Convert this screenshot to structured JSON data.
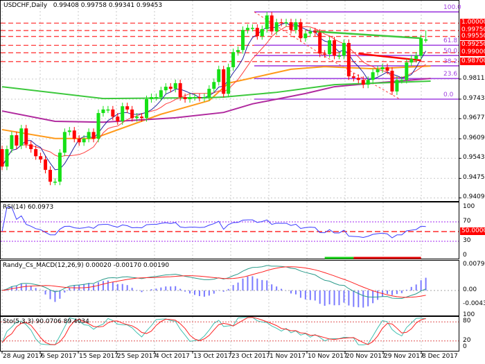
{
  "header": {
    "symbol": "USDCHF,Daily",
    "ohlc": "0.99408 0.99758 0.99341 0.99453"
  },
  "colors": {
    "bull": "#16e016",
    "bear": "#ff0000",
    "ma_fast": "#2323a0",
    "ma_10": "#ff4040",
    "ma_50": "#ff9a1a",
    "ma_100": "#b0299e",
    "ma_200": "#3cc83c",
    "fib": "#a040e0",
    "level": "#ff3c3c"
  },
  "chart_data": [
    {
      "type": "candlestick",
      "title": "USDCHF,Daily",
      "xlabel": "",
      "ylabel": "",
      "ylim": [
        0.9395,
        1.0066
      ],
      "grid": true,
      "price_ticks": [
        "0.98110",
        "0.97430",
        "0.96770",
        "0.96090",
        "0.95430",
        "0.94750",
        "0.94090"
      ],
      "date_ticks": [
        "28 Aug 2017",
        "6 Sep 2017",
        "15 Sep 2017",
        "25 Sep 2017",
        "4 Oct 2017",
        "13 Oct 2017",
        "23 Oct 2017",
        "1 Nov 2017",
        "10 Nov 2017",
        "20 Nov 2017",
        "29 Nov 2017",
        "8 Dec 2017"
      ],
      "first_open": 0.9574,
      "closes": [
        0.9515,
        0.9574,
        0.9621,
        0.9586,
        0.9644,
        0.959,
        0.9574,
        0.955,
        0.9539,
        0.9504,
        0.9464,
        0.9464,
        0.9562,
        0.9632,
        0.9637,
        0.9609,
        0.9597,
        0.9609,
        0.9632,
        0.9609,
        0.9696,
        0.9708,
        0.9708,
        0.9684,
        0.9668,
        0.9719,
        0.9708,
        0.9679,
        0.9684,
        0.9679,
        0.9743,
        0.975,
        0.975,
        0.9773,
        0.9785,
        0.9778,
        0.9797,
        0.975,
        0.9743,
        0.975,
        0.975,
        0.9747,
        0.975,
        0.9778,
        0.9801,
        0.9844,
        0.9761,
        0.9851,
        0.9902,
        0.9909,
        0.9977,
        0.9984,
        0.9984,
        0.9956,
        0.998,
        1.0026,
        0.9972,
        1.0003,
        1.0001,
        1.0003,
        0.9977,
        1.0003,
        0.9949,
        0.9965,
        0.9972,
        0.9968,
        0.9897,
        0.9895,
        0.9942,
        0.989,
        0.989,
        0.9933,
        0.982,
        0.9815,
        0.9808,
        0.9792,
        0.9808,
        0.9834,
        0.9844,
        0.9851,
        0.9839,
        0.9769,
        0.9808,
        0.9808,
        0.9867,
        0.9879,
        0.989,
        0.9949,
        0.9945
      ],
      "last_bar": {
        "open": 0.99408,
        "high": 0.99758,
        "low": 0.99341,
        "close": 0.99453
      },
      "moving_averages": [
        {
          "key": "ma_50",
          "points": [
            [
              0,
              0.964
            ],
            [
              11,
              0.961
            ],
            [
              19,
              0.961
            ],
            [
              33,
              0.9692
            ],
            [
              43,
              0.9738
            ],
            [
              47,
              0.9797
            ],
            [
              60,
              0.9844
            ],
            [
              67,
              0.9853
            ],
            [
              77,
              0.9846
            ],
            [
              89,
              0.9855
            ]
          ]
        },
        {
          "key": "ma_100",
          "points": [
            [
              0,
              0.9703
            ],
            [
              11,
              0.9668
            ],
            [
              21,
              0.9665
            ],
            [
              36,
              0.968
            ],
            [
              46,
              0.9698
            ],
            [
              52,
              0.9727
            ],
            [
              63,
              0.9762
            ],
            [
              69,
              0.9785
            ],
            [
              77,
              0.9797
            ],
            [
              89,
              0.9813
            ]
          ]
        },
        {
          "key": "ma_200",
          "points": [
            [
              0,
              0.9785
            ],
            [
              21,
              0.9745
            ],
            [
              43,
              0.9748
            ],
            [
              46,
              0.975
            ],
            [
              57,
              0.9766
            ],
            [
              69,
              0.9792
            ],
            [
              77,
              0.9797
            ],
            [
              89,
              0.9804
            ]
          ]
        }
      ],
      "levels": [
        {
          "label": "1.00000",
          "price": 1.0
        },
        {
          "label": "0.99750",
          "price": 0.9975
        },
        {
          "label": "0.99550",
          "price": 0.9955
        },
        {
          "label": "0.99250",
          "price": 0.9925
        },
        {
          "label": "0.99000",
          "price": 0.99
        },
        {
          "label": "0.98700",
          "price": 0.987
        }
      ],
      "fibonacci": {
        "high": 1.0038,
        "low": 0.9743,
        "levels": [
          {
            "label": "100.0",
            "ratio": 1.0
          },
          {
            "label": "61.8",
            "ratio": 0.618
          },
          {
            "label": "50.0",
            "ratio": 0.5
          },
          {
            "label": "38.2",
            "ratio": 0.382
          },
          {
            "label": "23.6",
            "ratio": 0.236
          },
          {
            "label": "0.0",
            "ratio": 0.0
          }
        ]
      },
      "trendlines": [
        {
          "key": "ma_200",
          "from": [
            65,
            0.9972
          ],
          "to": [
            87,
            0.9949
          ]
        },
        {
          "key": "bear",
          "from": [
            74,
            0.9897
          ],
          "to": [
            87,
            0.9874
          ]
        }
      ]
    },
    {
      "type": "line",
      "title": "RSI(14) 60.0973",
      "ylim": [
        0,
        100
      ],
      "ticks": [
        "100",
        "70",
        "30",
        "0"
      ],
      "level_label": "50.0000",
      "levels": [
        70,
        50,
        30
      ]
    },
    {
      "type": "bar+line",
      "title": "Randy_Cs_MACD(12,26,9) 0.00020 -0.00170 0.00190",
      "ticks": [
        "0.00797",
        "0.00",
        "-0.00432"
      ],
      "ylim": [
        -0.0047,
        0.0086
      ]
    },
    {
      "type": "line",
      "title": "Sto(5,3,3) 90.0706 89.4034",
      "ylim": [
        0,
        100
      ],
      "ticks": [
        "100",
        "80",
        "20",
        "0"
      ],
      "levels": [
        80,
        20
      ]
    }
  ]
}
